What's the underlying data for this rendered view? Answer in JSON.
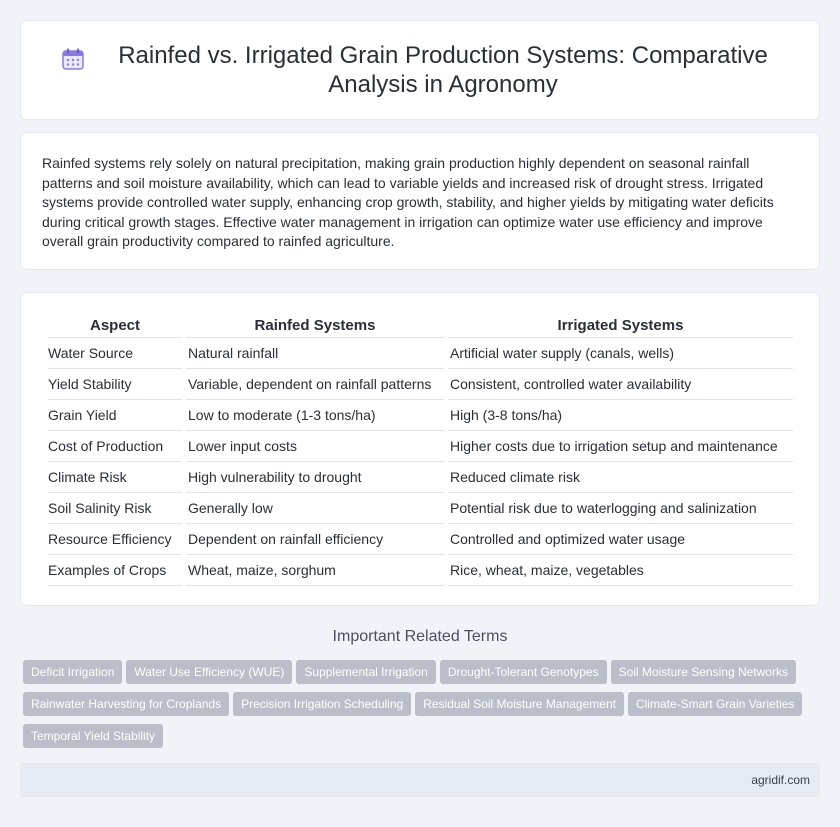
{
  "header": {
    "title": "Rainfed vs. Irrigated Grain Production Systems: Comparative Analysis in Agronomy",
    "icon": "calendar-icon"
  },
  "intro": {
    "text": "Rainfed systems rely solely on natural precipitation, making grain production highly dependent on seasonal rainfall patterns and soil moisture availability, which can lead to variable yields and increased risk of drought stress. Irrigated systems provide controlled water supply, enhancing crop growth, stability, and higher yields by mitigating water deficits during critical growth stages. Effective water management in irrigation can optimize water use efficiency and improve overall grain productivity compared to rainfed agriculture."
  },
  "table": {
    "headers": [
      "Aspect",
      "Rainfed Systems",
      "Irrigated Systems"
    ],
    "rows": [
      [
        "Water Source",
        "Natural rainfall",
        "Artificial water supply (canals, wells)"
      ],
      [
        "Yield Stability",
        "Variable, dependent on rainfall patterns",
        "Consistent, controlled water availability"
      ],
      [
        "Grain Yield",
        "Low to moderate (1-3 tons/ha)",
        "High (3-8 tons/ha)"
      ],
      [
        "Cost of Production",
        "Lower input costs",
        "Higher costs due to irrigation setup and maintenance"
      ],
      [
        "Climate Risk",
        "High vulnerability to drought",
        "Reduced climate risk"
      ],
      [
        "Soil Salinity Risk",
        "Generally low",
        "Potential risk due to waterlogging and salinization"
      ],
      [
        "Resource Efficiency",
        "Dependent on rainfall efficiency",
        "Controlled and optimized water usage"
      ],
      [
        "Examples of Crops",
        "Wheat, maize, sorghum",
        "Rice, wheat, maize, vegetables"
      ]
    ]
  },
  "related": {
    "title": "Important Related Terms",
    "tags": [
      "Deficit Irrigation",
      "Water Use Efficiency (WUE)",
      "Supplemental Irrigation",
      "Drought-Tolerant Genotypes",
      "Soil Moisture Sensing Networks",
      "Rainwater Harvesting for Croplands",
      "Precision Irrigation Scheduling",
      "Residual Soil Moisture Management",
      "Climate-Smart Grain Varieties",
      "Temporal Yield Stability"
    ]
  },
  "footer": {
    "site": "agridif.com"
  },
  "colors": {
    "background": "#f0f3f8",
    "card": "#ffffff",
    "tag": "#b9bec8",
    "footer": "#e6ebf3",
    "icon_purple": "#8a7be0"
  }
}
